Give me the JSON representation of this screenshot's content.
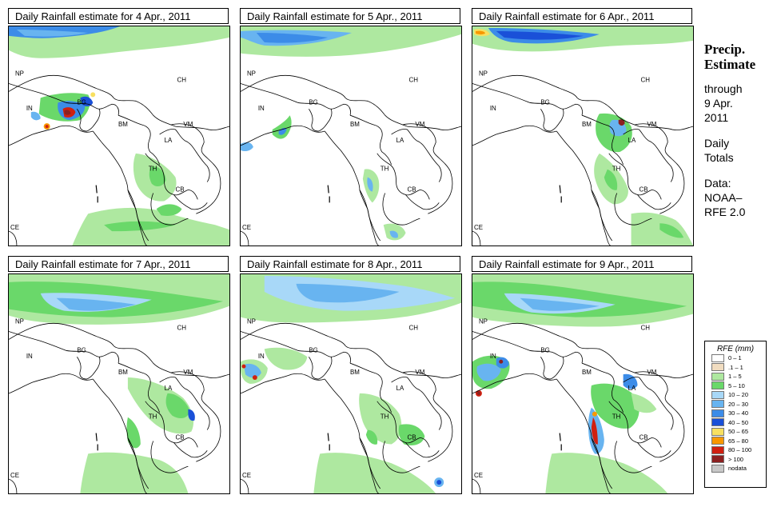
{
  "panels": [
    {
      "title": "Daily Rainfall estimate for  4 Apr., 2011"
    },
    {
      "title": "Daily Rainfall estimate for  5 Apr., 2011"
    },
    {
      "title": "Daily Rainfall estimate for  6 Apr., 2011"
    },
    {
      "title": "Daily Rainfall estimate for  7 Apr., 2011"
    },
    {
      "title": "Daily Rainfall estimate for  8 Apr., 2011"
    },
    {
      "title": "Daily Rainfall estimate for  9 Apr., 2011"
    }
  ],
  "countries": {
    "np": "NP",
    "ch": "CH",
    "in": "IN",
    "bg": "BG",
    "bm": "BM",
    "vm": "VM",
    "la": "LA",
    "th": "TH",
    "cb": "CB",
    "ce": "CE"
  },
  "side": {
    "title_line1": "Precip.",
    "title_line2": "Estimate",
    "through": "through",
    "date_line1": "9 Apr.",
    "date_line2": "2011",
    "daily_line1": "Daily",
    "daily_line2": "Totals",
    "data_line1": "Data:",
    "data_line2": "NOAA–",
    "data_line3": "RFE 2.0"
  },
  "legend": {
    "title": "RFE (mm)",
    "items": [
      {
        "label": "0 – 1",
        "color": "#ffffff"
      },
      {
        "label": ".1 – 1",
        "color": "#f0dcc0"
      },
      {
        "label": "1 – 5",
        "color": "#aee8a0"
      },
      {
        "label": "5 – 10",
        "color": "#6ad86a"
      },
      {
        "label": "10 – 20",
        "color": "#a8d8f8"
      },
      {
        "label": "20 – 30",
        "color": "#68b4f0"
      },
      {
        "label": "30 – 40",
        "color": "#3c8ce8"
      },
      {
        "label": "40 – 50",
        "color": "#1a50d8"
      },
      {
        "label": "50 – 65",
        "color": "#f8e060"
      },
      {
        "label": "65 – 80",
        "color": "#f89800"
      },
      {
        "label": "80 – 100",
        "color": "#d02010"
      },
      {
        "label": "> 100",
        "color": "#8c2020"
      },
      {
        "label": "nodata",
        "color": "#c8c8c8"
      }
    ]
  }
}
